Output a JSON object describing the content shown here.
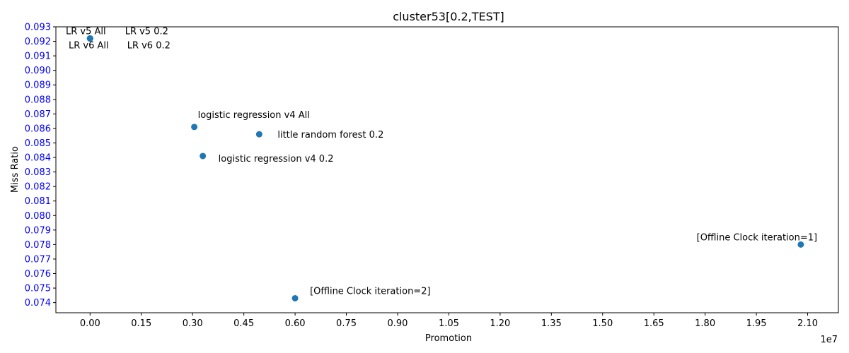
{
  "chart_data": {
    "type": "scatter",
    "title": "cluster53[0.2,TEST]",
    "xlabel": "Promotion",
    "ylabel": "Miss Ratio",
    "x_offset_label": "1e7",
    "xlim": [
      -1000000,
      21900000
    ],
    "ylim": [
      0.0733,
      0.093
    ],
    "x_ticks": [
      0,
      1500000,
      3000000,
      4500000,
      6000000,
      7500000,
      9000000,
      10500000,
      12000000,
      13500000,
      15000000,
      16500000,
      18000000,
      19500000,
      21000000
    ],
    "x_tick_labels": [
      "0.00",
      "0.15",
      "0.30",
      "0.45",
      "0.60",
      "0.75",
      "0.90",
      "1.05",
      "1.20",
      "1.35",
      "1.50",
      "1.65",
      "1.80",
      "1.95",
      "2.10"
    ],
    "y_ticks": [
      0.074,
      0.075,
      0.076,
      0.077,
      0.078,
      0.079,
      0.08,
      0.081,
      0.082,
      0.083,
      0.084,
      0.085,
      0.086,
      0.087,
      0.088,
      0.089,
      0.09,
      0.091,
      0.092,
      0.093
    ],
    "y_tick_labels": [
      "0.074",
      "0.075",
      "0.076",
      "0.077",
      "0.078",
      "0.079",
      "0.080",
      "0.081",
      "0.082",
      "0.083",
      "0.084",
      "0.085",
      "0.086",
      "0.087",
      "0.088",
      "0.089",
      "0.090",
      "0.091",
      "0.092",
      "0.093"
    ],
    "grid": false,
    "colors": {
      "marker": "#1f77b4",
      "y_tick_labels": "#0000ff",
      "axes": "#000000"
    },
    "points": [
      {
        "label": "LR v5 All",
        "x": 0,
        "y": 0.0922
      },
      {
        "label": "LR v5 0.2",
        "x": 0,
        "y": 0.0922
      },
      {
        "label": "LR v6 All",
        "x": 0,
        "y": 0.0922
      },
      {
        "label": "LR v6 0.2",
        "x": 0,
        "y": 0.0922
      },
      {
        "label": "logistic regression v4 All",
        "x": 3050000,
        "y": 0.0861
      },
      {
        "label": "little random forest 0.2",
        "x": 4950000,
        "y": 0.0856
      },
      {
        "label": "logistic regression v4 0.2",
        "x": 3300000,
        "y": 0.0841
      },
      {
        "label": "[Offline Clock iteration=1]",
        "x": 20800000,
        "y": 0.078
      },
      {
        "label": "[Offline Clock iteration=2]",
        "x": 6000000,
        "y": 0.0743
      }
    ]
  }
}
